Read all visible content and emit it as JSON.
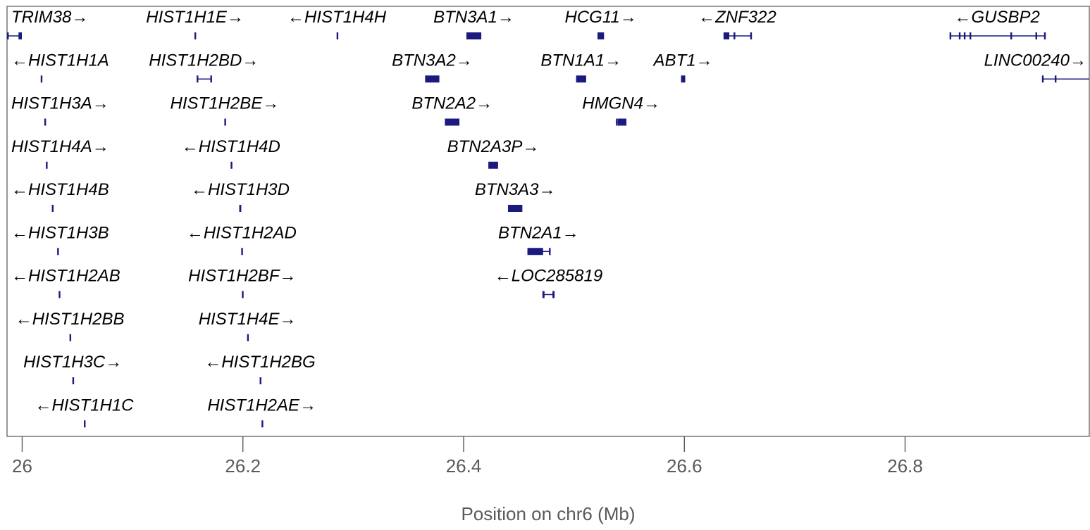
{
  "chart_data": {
    "type": "gene_track",
    "xlabel": "Position on chr6 (Mb)",
    "xlim": [
      25.9863,
      26.9669
    ],
    "xticks": [
      26,
      26.2,
      26.4,
      26.6,
      26.8
    ],
    "xtick_labels": [
      "26",
      "26.2",
      "26.4",
      "26.6",
      "26.8"
    ],
    "colors": {
      "gene": "#1a1a7f",
      "text": "#000000",
      "axis": "#5a5a5a",
      "frame": "#555555"
    },
    "genes": [
      {
        "name": "TRIM38",
        "strand": "+",
        "row": 0,
        "start": 25.9863,
        "end": 25.9997,
        "exons": [
          [
            25.9863,
            25.9869
          ],
          [
            25.9967,
            25.9997
          ]
        ]
      },
      {
        "name": "HIST1H1E",
        "strand": "+",
        "row": 0,
        "start": 26.1561,
        "end": 26.1569,
        "exons": [
          [
            26.1561,
            26.1569
          ]
        ]
      },
      {
        "name": "HIST1H4H",
        "strand": "-",
        "row": 0,
        "start": 26.2849,
        "end": 26.2853,
        "exons": [
          [
            26.2849,
            26.2853
          ]
        ]
      },
      {
        "name": "BTN3A1",
        "strand": "+",
        "row": 0,
        "start": 26.4025,
        "end": 26.416,
        "exons": [
          [
            26.4025,
            26.416
          ]
        ]
      },
      {
        "name": "HCG11",
        "strand": "+",
        "row": 0,
        "start": 26.5213,
        "end": 26.5272,
        "exons": [
          [
            26.5213,
            26.5272
          ]
        ]
      },
      {
        "name": "ZNF322",
        "strand": "-",
        "row": 0,
        "start": 26.6355,
        "end": 26.6605,
        "exons": [
          [
            26.6355,
            26.6407
          ],
          [
            26.6446,
            26.6452
          ],
          [
            26.6597,
            26.6605
          ]
        ]
      },
      {
        "name": "GUSBP2",
        "strand": "-",
        "row": 0,
        "start": 26.8403,
        "end": 26.9265,
        "exons": [
          [
            26.8403,
            26.8409
          ],
          [
            26.8487,
            26.8493
          ],
          [
            26.8532,
            26.8538
          ],
          [
            26.8584,
            26.859
          ],
          [
            26.8954,
            26.896
          ],
          [
            26.9181,
            26.9187
          ],
          [
            26.9259,
            26.9265
          ]
        ]
      },
      {
        "name": "HIST1H1A",
        "strand": "-",
        "row": 1,
        "start": 26.0168,
        "end": 26.0176,
        "exons": [
          [
            26.0168,
            26.0176
          ]
        ]
      },
      {
        "name": "HIST1H2BD",
        "strand": "+",
        "row": 1,
        "start": 26.1581,
        "end": 26.1711,
        "exons": [
          [
            26.1581,
            26.1587
          ],
          [
            26.1705,
            26.1711
          ]
        ]
      },
      {
        "name": "BTN3A2",
        "strand": "+",
        "row": 1,
        "start": 26.3651,
        "end": 26.378,
        "exons": [
          [
            26.3651,
            26.378
          ]
        ]
      },
      {
        "name": "BTN1A1",
        "strand": "+",
        "row": 1,
        "start": 26.5019,
        "end": 26.511,
        "exons": [
          [
            26.5019,
            26.511
          ]
        ]
      },
      {
        "name": "ABT1",
        "strand": "+",
        "row": 1,
        "start": 26.597,
        "end": 26.6008,
        "exons": [
          [
            26.597,
            26.6008
          ]
        ]
      },
      {
        "name": "LINC00240",
        "strand": "+",
        "row": 1,
        "start": 26.924,
        "end": 26.9669,
        "exons": [
          [
            26.924,
            26.9246
          ],
          [
            26.9356,
            26.9362
          ]
        ]
      },
      {
        "name": "HIST1H3A",
        "strand": "+",
        "row": 2,
        "start": 26.0201,
        "end": 26.0207,
        "exons": [
          [
            26.0201,
            26.0207
          ]
        ]
      },
      {
        "name": "HIST1H2BE",
        "strand": "+",
        "row": 2,
        "start": 26.1832,
        "end": 26.1838,
        "exons": [
          [
            26.1832,
            26.1838
          ]
        ]
      },
      {
        "name": "BTN2A2",
        "strand": "+",
        "row": 2,
        "start": 26.383,
        "end": 26.3962,
        "exons": [
          [
            26.383,
            26.3962
          ]
        ]
      },
      {
        "name": "HMGN4",
        "strand": "+",
        "row": 2,
        "start": 26.538,
        "end": 26.5475,
        "exons": [
          [
            26.538,
            26.5386
          ],
          [
            26.5397,
            26.5475
          ]
        ]
      },
      {
        "name": "HIST1H4A",
        "strand": "+",
        "row": 3,
        "start": 26.0215,
        "end": 26.0221,
        "exons": [
          [
            26.0215,
            26.0221
          ]
        ]
      },
      {
        "name": "HIST1H4D",
        "strand": "-",
        "row": 3,
        "start": 26.1889,
        "end": 26.1895,
        "exons": [
          [
            26.1889,
            26.1895
          ]
        ]
      },
      {
        "name": "BTN2A3P",
        "strand": "+",
        "row": 3,
        "start": 26.4224,
        "end": 26.4312,
        "exons": [
          [
            26.4224,
            26.4312
          ]
        ]
      },
      {
        "name": "HIST1H4B",
        "strand": "-",
        "row": 4,
        "start": 26.0269,
        "end": 26.0275,
        "exons": [
          [
            26.0269,
            26.0275
          ]
        ]
      },
      {
        "name": "HIST1H3D",
        "strand": "-",
        "row": 4,
        "start": 26.1967,
        "end": 26.1985,
        "exons": [
          [
            26.1967,
            26.1985
          ]
        ]
      },
      {
        "name": "BTN3A3",
        "strand": "+",
        "row": 4,
        "start": 26.4402,
        "end": 26.4532,
        "exons": [
          [
            26.4402,
            26.4532
          ]
        ]
      },
      {
        "name": "HIST1H3B",
        "strand": "-",
        "row": 5,
        "start": 26.0317,
        "end": 26.0323,
        "exons": [
          [
            26.0317,
            26.0323
          ]
        ]
      },
      {
        "name": "HIST1H2AD",
        "strand": "-",
        "row": 5,
        "start": 26.1985,
        "end": 26.1991,
        "exons": [
          [
            26.1985,
            26.1991
          ]
        ]
      },
      {
        "name": "BTN2A1",
        "strand": "+",
        "row": 5,
        "start": 26.4578,
        "end": 26.4779,
        "exons": [
          [
            26.4578,
            26.472
          ],
          [
            26.4773,
            26.4779
          ]
        ]
      },
      {
        "name": "HIST1H2AB",
        "strand": "-",
        "row": 6,
        "start": 26.0331,
        "end": 26.0337,
        "exons": [
          [
            26.0331,
            26.0337
          ]
        ]
      },
      {
        "name": "HIST1H2BF",
        "strand": "+",
        "row": 6,
        "start": 26.1991,
        "end": 26.1997,
        "exons": [
          [
            26.1991,
            26.1997
          ]
        ]
      },
      {
        "name": "LOC285819",
        "strand": "-",
        "row": 6,
        "start": 26.4714,
        "end": 26.4824,
        "exons": [
          [
            26.4714,
            26.4733
          ],
          [
            26.4805,
            26.4824
          ]
        ]
      },
      {
        "name": "HIST1H2BB",
        "strand": "-",
        "row": 7,
        "start": 26.0429,
        "end": 26.0435,
        "exons": [
          [
            26.0429,
            26.0435
          ]
        ]
      },
      {
        "name": "HIST1H4E",
        "strand": "+",
        "row": 7,
        "start": 26.2038,
        "end": 26.2044,
        "exons": [
          [
            26.2038,
            26.2044
          ]
        ]
      },
      {
        "name": "HIST1H3C",
        "strand": "+",
        "row": 8,
        "start": 26.0455,
        "end": 26.0461,
        "exons": [
          [
            26.0455,
            26.0461
          ]
        ]
      },
      {
        "name": "HIST1H2BG",
        "strand": "-",
        "row": 8,
        "start": 26.2152,
        "end": 26.2158,
        "exons": [
          [
            26.2152,
            26.2158
          ]
        ]
      },
      {
        "name": "HIST1H1C",
        "strand": "-",
        "row": 9,
        "start": 26.0559,
        "end": 26.0565,
        "exons": [
          [
            26.0559,
            26.0565
          ]
        ]
      },
      {
        "name": "HIST1H2AE",
        "strand": "+",
        "row": 9,
        "start": 26.2169,
        "end": 26.2175,
        "exons": [
          [
            26.2169,
            26.2175
          ]
        ]
      }
    ]
  }
}
